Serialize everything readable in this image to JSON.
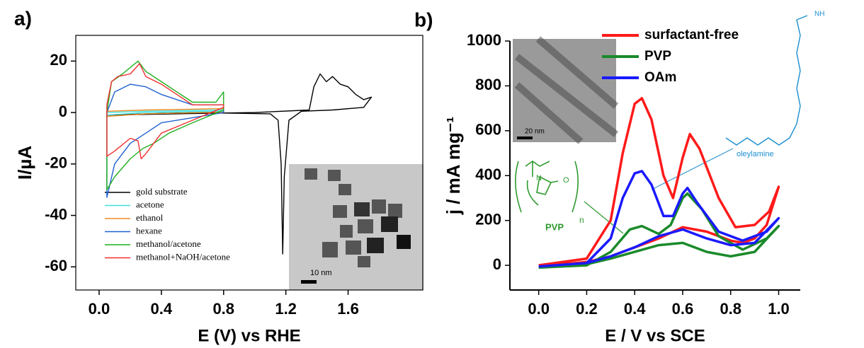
{
  "chart_data": [
    {
      "type": "line",
      "label": "a)",
      "x_label": "E (V) vs RHE",
      "y_label": "I/µA",
      "xlim": [
        -0.15,
        2.08
      ],
      "ylim": [
        -69,
        30
      ],
      "xticks": [
        {
          "value": 0,
          "label": "0.0"
        },
        {
          "value": 0.4,
          "label": "0.4"
        },
        {
          "value": 0.8,
          "label": "0.8"
        },
        {
          "value": 1.2,
          "label": "1.2"
        },
        {
          "value": 1.6,
          "label": "1.6"
        }
      ],
      "yticks": [
        20,
        0,
        -20,
        -40,
        -60
      ],
      "annotations": [
        "10 nm"
      ],
      "series": [
        {
          "name": "gold substrate",
          "color": "#000000",
          "x": [
            0.05,
            0.5,
            1.0,
            1.35,
            1.38,
            1.42,
            1.46,
            1.5,
            1.55,
            1.6,
            1.65,
            1.7,
            1.75,
            1.7,
            1.5,
            1.3,
            1.22,
            1.19,
            1.18,
            1.17,
            1.15,
            1.1,
            0.6,
            0.05
          ],
          "values": [
            -1,
            -0.5,
            0,
            1,
            10,
            15,
            12,
            14,
            11,
            10,
            7,
            5,
            6,
            2,
            1,
            0.5,
            -3,
            -25,
            -55,
            -20,
            -3,
            -0.5,
            0,
            -1
          ]
        },
        {
          "name": "acetone",
          "color": "#3fe0e0",
          "x": [
            0.05,
            0.3,
            0.8,
            0.8,
            0.3,
            0.05,
            0.05
          ],
          "values": [
            -1,
            0,
            0.5,
            1,
            0.5,
            0,
            -1
          ]
        },
        {
          "name": "ethanol",
          "color": "#f08a24",
          "x": [
            0.05,
            0.3,
            0.8,
            0.8,
            0.3,
            0.05,
            0.05
          ],
          "values": [
            -1.5,
            -0.5,
            0.2,
            1.5,
            1,
            0.5,
            -1.5
          ]
        },
        {
          "name": "hexane",
          "color": "#2060d0",
          "x": [
            0.05,
            0.1,
            0.2,
            0.3,
            0.4,
            0.6,
            0.8,
            0.8,
            0.6,
            0.4,
            0.3,
            0.2,
            0.1,
            0.05,
            0.05
          ],
          "values": [
            0,
            8,
            11,
            10,
            7,
            3,
            3,
            0,
            -2,
            -4,
            -8,
            -12,
            -20,
            -33,
            0
          ]
        },
        {
          "name": "methanol/acetone",
          "color": "#1fb01f",
          "x": [
            0.05,
            0.08,
            0.15,
            0.25,
            0.3,
            0.4,
            0.6,
            0.75,
            0.8,
            0.8,
            0.6,
            0.45,
            0.35,
            0.28,
            0.2,
            0.1,
            0.05,
            0.05
          ],
          "values": [
            0,
            12,
            15,
            20,
            16,
            12,
            4,
            4,
            8,
            1,
            -4,
            -8,
            -12,
            -14,
            -18,
            -25,
            -30,
            0
          ]
        },
        {
          "name": "methanol+NaOH/acetone",
          "color": "#f03030",
          "x": [
            0.05,
            0.08,
            0.12,
            0.2,
            0.26,
            0.3,
            0.4,
            0.6,
            0.8,
            0.8,
            0.6,
            0.4,
            0.3,
            0.27,
            0.25,
            0.2,
            0.1,
            0.05,
            0.05
          ],
          "values": [
            3,
            12,
            14,
            15,
            19,
            14,
            11,
            3,
            3,
            2,
            -3,
            -8,
            -16,
            -18,
            -11,
            -10,
            -15,
            -17,
            3
          ]
        }
      ]
    },
    {
      "type": "line",
      "label": "b)",
      "x_label": "E / V vs SCE",
      "y_label": "j / mA mg⁻¹",
      "xlim": [
        -0.12,
        1.09
      ],
      "ylim": [
        -110,
        1000
      ],
      "xticks": [
        {
          "value": 0,
          "label": "0.0"
        },
        {
          "value": 0.2,
          "label": "0.2"
        },
        {
          "value": 0.4,
          "label": "0.4"
        },
        {
          "value": 0.6,
          "label": "0.6"
        },
        {
          "value": 0.8,
          "label": "0.8"
        },
        {
          "value": 1,
          "label": "1.0"
        }
      ],
      "yticks": [
        0,
        200,
        400,
        600,
        800,
        1000
      ],
      "annotations": [
        "20 nm",
        "PVP",
        "n",
        "N",
        "O",
        "NH",
        "oleylamine"
      ],
      "series": [
        {
          "name": "surfactant-free",
          "color": "#ff1a1a",
          "x": [
            0,
            0.2,
            0.3,
            0.35,
            0.4,
            0.43,
            0.47,
            0.52,
            0.56,
            0.6,
            0.63,
            0.67,
            0.75,
            0.82,
            0.9,
            0.96,
            1.0,
            0.95,
            0.9,
            0.85,
            0.8,
            0.7,
            0.6,
            0.5,
            0.4,
            0.3,
            0.2,
            0.1,
            0
          ],
          "values": [
            0,
            30,
            200,
            500,
            720,
            745,
            650,
            400,
            300,
            480,
            585,
            520,
            300,
            170,
            180,
            240,
            350,
            180,
            120,
            100,
            110,
            150,
            170,
            120,
            80,
            40,
            15,
            5,
            0
          ]
        },
        {
          "name": "PVP",
          "color": "#1a8a2a",
          "x": [
            0,
            0.2,
            0.3,
            0.38,
            0.43,
            0.5,
            0.55,
            0.6,
            0.62,
            0.68,
            0.75,
            0.85,
            0.95,
            1.0,
            0.9,
            0.8,
            0.7,
            0.6,
            0.5,
            0.4,
            0.3,
            0.2,
            0
          ],
          "values": [
            -10,
            0,
            60,
            160,
            175,
            140,
            180,
            300,
            320,
            250,
            130,
            70,
            120,
            175,
            60,
            40,
            60,
            100,
            90,
            60,
            30,
            5,
            -10
          ]
        },
        {
          "name": "OAm",
          "color": "#1a1aff",
          "x": [
            0,
            0.2,
            0.3,
            0.35,
            0.4,
            0.43,
            0.47,
            0.52,
            0.56,
            0.6,
            0.62,
            0.66,
            0.75,
            0.85,
            0.95,
            1.0,
            0.9,
            0.8,
            0.7,
            0.6,
            0.5,
            0.4,
            0.3,
            0.2,
            0
          ],
          "values": [
            -5,
            10,
            120,
            300,
            410,
            420,
            360,
            220,
            220,
            320,
            345,
            280,
            150,
            110,
            150,
            210,
            100,
            90,
            120,
            160,
            130,
            80,
            40,
            10,
            -5
          ]
        }
      ]
    }
  ]
}
